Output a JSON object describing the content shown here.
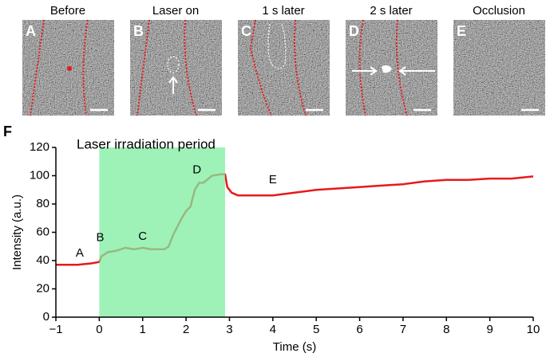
{
  "panels": [
    {
      "title": "Before",
      "letter": "A"
    },
    {
      "title": "Laser on",
      "letter": "B"
    },
    {
      "title": "1 s later",
      "letter": "C"
    },
    {
      "title": "2 s later",
      "letter": "D"
    },
    {
      "title": "Occlusion",
      "letter": "E"
    }
  ],
  "chart_data": {
    "type": "line",
    "panel_letter": "F",
    "x_label": "Time (s)",
    "y_label": "Intensity (a.u.)",
    "xlim": [
      -1,
      10
    ],
    "ylim": [
      0,
      120
    ],
    "xticks": [
      {
        "value": -1,
        "label": "−1"
      },
      0,
      1,
      2,
      3,
      4,
      5,
      6,
      7,
      8,
      9,
      10
    ],
    "yticks": [
      0,
      20,
      40,
      60,
      80,
      100,
      120
    ],
    "highlight": {
      "label": "Laser irradiation period",
      "xlim": [
        0,
        2.9
      ],
      "color": "#7eeea0"
    },
    "x": [
      -1,
      -0.5,
      -0.2,
      0,
      0.05,
      0.2,
      0.4,
      0.6,
      0.8,
      1.0,
      1.2,
      1.4,
      1.5,
      1.6,
      1.7,
      1.8,
      1.9,
      2.0,
      2.1,
      2.2,
      2.3,
      2.4,
      2.6,
      2.8,
      2.9,
      2.95,
      3.05,
      3.2,
      3.5,
      4.0,
      4.5,
      5,
      5.5,
      6,
      6.5,
      7,
      7.5,
      8,
      8.5,
      9,
      9.5,
      10
    ],
    "series": [
      {
        "color": "#e8191c",
        "values": [
          37,
          37,
          38,
          39,
          43,
          46,
          47,
          49,
          48,
          49,
          48,
          48,
          48,
          50,
          58,
          64,
          70,
          75,
          78,
          90,
          95,
          95,
          100,
          101,
          101,
          92,
          88,
          86,
          86,
          86,
          88,
          90,
          91,
          92,
          93,
          94,
          96,
          97,
          97,
          98,
          98,
          99.5
        ]
      }
    ],
    "annotations": [
      {
        "text": "A",
        "x": -0.45,
        "y": 45
      },
      {
        "text": "B",
        "x": 0.02,
        "y": 56
      },
      {
        "text": "C",
        "x": 1.0,
        "y": 57
      },
      {
        "text": "D",
        "x": 2.25,
        "y": 104
      },
      {
        "text": "E",
        "x": 4.0,
        "y": 97
      }
    ]
  }
}
